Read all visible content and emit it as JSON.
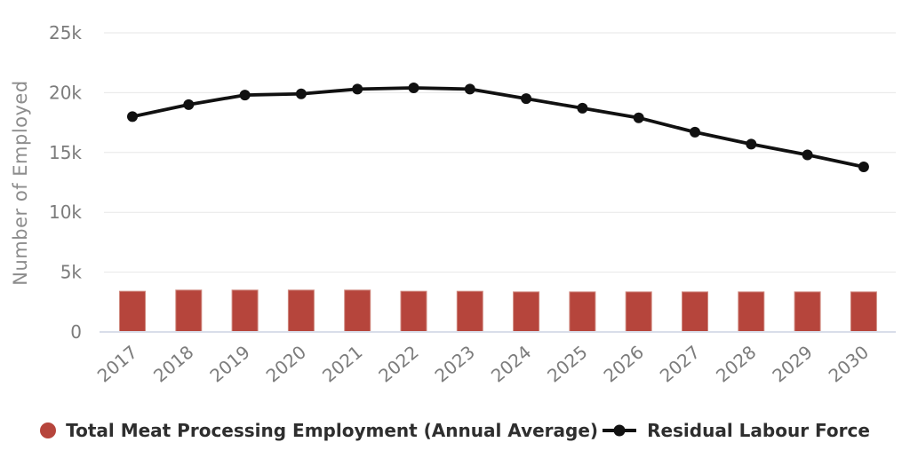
{
  "chart_data": {
    "type": "combo",
    "title": "",
    "xlabel": "",
    "ylabel": "Number of Employed",
    "categories": [
      "2017",
      "2018",
      "2019",
      "2020",
      "2021",
      "2022",
      "2023",
      "2024",
      "2025",
      "2026",
      "2027",
      "2028",
      "2029",
      "2030"
    ],
    "series": [
      {
        "name": "Total Meat Processing Employment (Annual Average)",
        "type": "bar",
        "color": "#b6453c",
        "values": [
          3400,
          3500,
          3500,
          3500,
          3500,
          3400,
          3400,
          3350,
          3350,
          3350,
          3350,
          3350,
          3350,
          3350
        ]
      },
      {
        "name": "Residual Labour Force",
        "type": "line",
        "color": "#111111",
        "values": [
          18000,
          19000,
          19800,
          19900,
          20300,
          20400,
          20300,
          19500,
          18700,
          17900,
          16700,
          15700,
          14800,
          13800
        ]
      }
    ],
    "ylim": [
      0,
      25000
    ],
    "yticks": [
      {
        "value": 0,
        "label": "0"
      },
      {
        "value": 5000,
        "label": "5k"
      },
      {
        "value": 10000,
        "label": "10k"
      },
      {
        "value": 15000,
        "label": "15k"
      },
      {
        "value": 20000,
        "label": "20k"
      },
      {
        "value": 25000,
        "label": "25k"
      }
    ],
    "grid": true,
    "legend_position": "bottom",
    "colors": {
      "bar_fill": "#b6453c",
      "bar_stroke": "#d08a80",
      "line": "#111111",
      "grid": "#e7e7e7",
      "baseline": "#d9deea",
      "axis_text": "#7c7c7c",
      "axis_title_text": "#8c8c8c",
      "legend_text": "#2e2e2e"
    }
  }
}
